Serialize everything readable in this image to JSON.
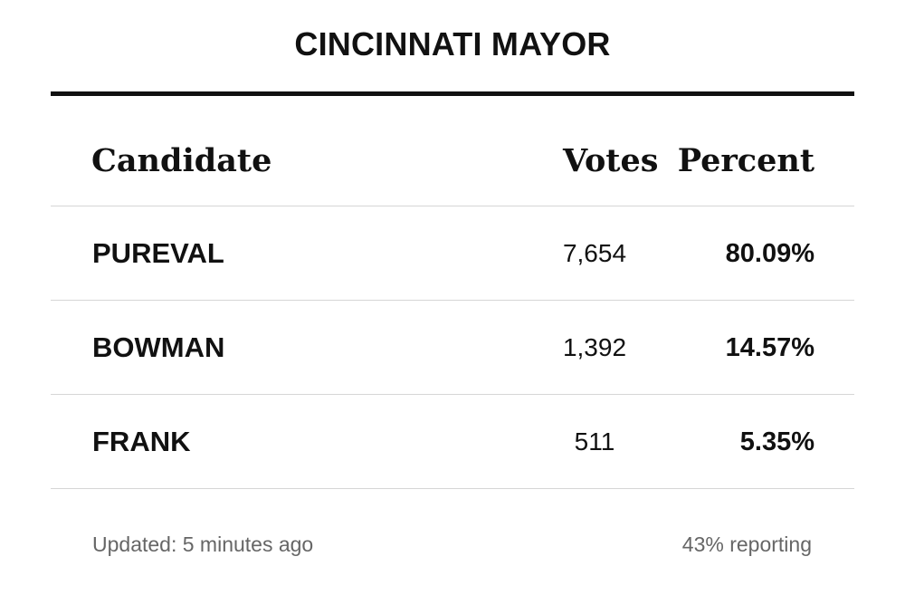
{
  "title": "CINCINNATI MAYOR",
  "columns": {
    "candidate": "Candidate",
    "votes": "Votes",
    "percent": "Percent"
  },
  "rows": [
    {
      "candidate": "PUREVAL",
      "votes": "7,654",
      "percent": "80.09%"
    },
    {
      "candidate": "BOWMAN",
      "votes": "1,392",
      "percent": "14.57%"
    },
    {
      "candidate": "FRANK",
      "votes": "511",
      "percent": "5.35%"
    }
  ],
  "footer": {
    "updated": "Updated: 5 minutes ago",
    "reporting": "43% reporting"
  },
  "colors": {
    "text": "#111111",
    "muted": "#666666",
    "divider": "#d6d6d6"
  }
}
